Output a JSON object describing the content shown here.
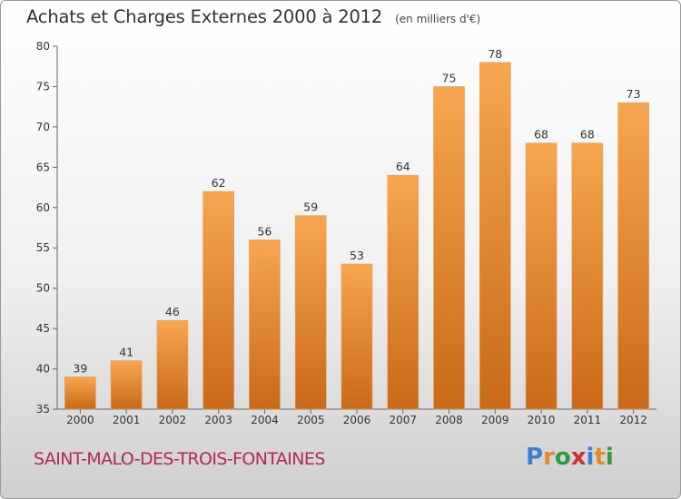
{
  "header": {
    "title": "Achats et Charges Externes 2000 à 2012",
    "unit": "(en milliers d'€)"
  },
  "footer": {
    "commune": "SAINT-MALO-DES-TROIS-FONTAINES",
    "logo_letters": [
      "P",
      "r",
      "o",
      "x",
      "i",
      "t",
      "i"
    ],
    "logo_colors": [
      "#3a7fd4",
      "#e8862a",
      "#2f9b3a",
      "#d12f2f",
      "#3a7fd4",
      "#e8862a",
      "#2f9b3a"
    ]
  },
  "chart_data": {
    "type": "bar",
    "title": "Achats et Charges Externes 2000 à 2012",
    "subtitle": "(en milliers d'€)",
    "xlabel": "",
    "ylabel": "",
    "categories": [
      "2000",
      "2001",
      "2002",
      "2003",
      "2004",
      "2005",
      "2006",
      "2007",
      "2008",
      "2009",
      "2010",
      "2011",
      "2012"
    ],
    "values": [
      39,
      41,
      46,
      62,
      56,
      59,
      53,
      64,
      75,
      78,
      68,
      68,
      73
    ],
    "ylim": [
      35,
      80
    ],
    "yticks": [
      35,
      40,
      45,
      50,
      55,
      60,
      65,
      70,
      75,
      80
    ],
    "grid": false,
    "legend": "none",
    "colors": {
      "bar_light": "#f7a650",
      "bar_dark": "#c96a18",
      "axis": "#666666"
    }
  }
}
